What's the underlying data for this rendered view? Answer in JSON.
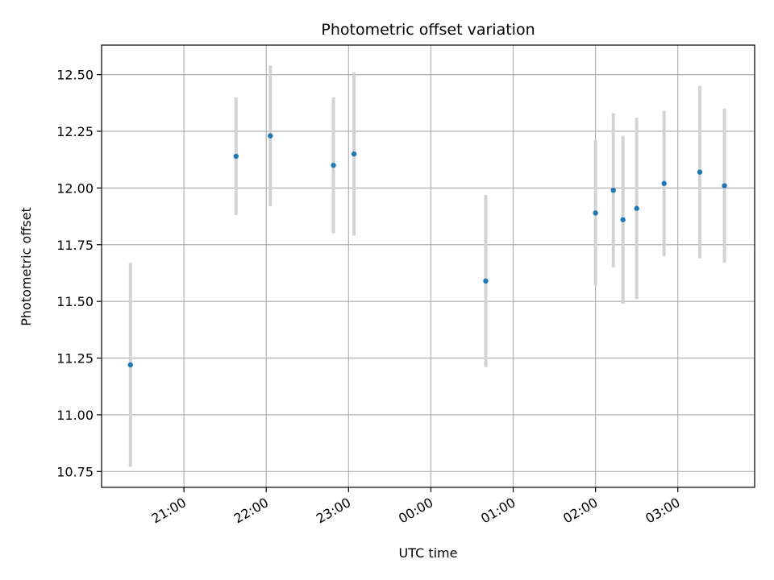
{
  "chart_data": {
    "type": "scatter",
    "title": "Photometric offset variation",
    "xlabel": "UTC time",
    "ylabel": "Photometric offset",
    "x_unit": "UTC clock time (HH:MM), night spanning midnight",
    "xlim": [
      "20:00",
      "03:56"
    ],
    "ylim": [
      10.68,
      12.63
    ],
    "x_ticks": [
      "21:00",
      "22:00",
      "23:00",
      "00:00",
      "01:00",
      "02:00",
      "03:00"
    ],
    "y_ticks": [
      10.75,
      11.0,
      11.25,
      11.5,
      11.75,
      12.0,
      12.25,
      12.5
    ],
    "y_tick_labels": [
      "10.75",
      "11.00",
      "11.25",
      "11.50",
      "11.75",
      "12.00",
      "12.25",
      "12.50"
    ],
    "grid": true,
    "points": [
      {
        "x": "20:21",
        "y": 11.22,
        "err": 0.45
      },
      {
        "x": "21:38",
        "y": 12.14,
        "err": 0.26
      },
      {
        "x": "22:03",
        "y": 12.23,
        "err": 0.31
      },
      {
        "x": "22:49",
        "y": 12.1,
        "err": 0.3
      },
      {
        "x": "23:04",
        "y": 12.15,
        "err": 0.36
      },
      {
        "x": "00:40",
        "y": 11.59,
        "err": 0.38
      },
      {
        "x": "02:00",
        "y": 11.89,
        "err": 0.32
      },
      {
        "x": "02:13",
        "y": 11.99,
        "err": 0.34
      },
      {
        "x": "02:20",
        "y": 11.86,
        "err": 0.37
      },
      {
        "x": "02:30",
        "y": 11.91,
        "err": 0.4
      },
      {
        "x": "02:50",
        "y": 12.02,
        "err": 0.32
      },
      {
        "x": "03:16",
        "y": 12.07,
        "err": 0.38
      },
      {
        "x": "03:34",
        "y": 12.01,
        "err": 0.34
      }
    ],
    "colors": {
      "point": "#1f77b4",
      "errorbar": "#d3d3d3",
      "grid": "#b0b0b0"
    }
  }
}
